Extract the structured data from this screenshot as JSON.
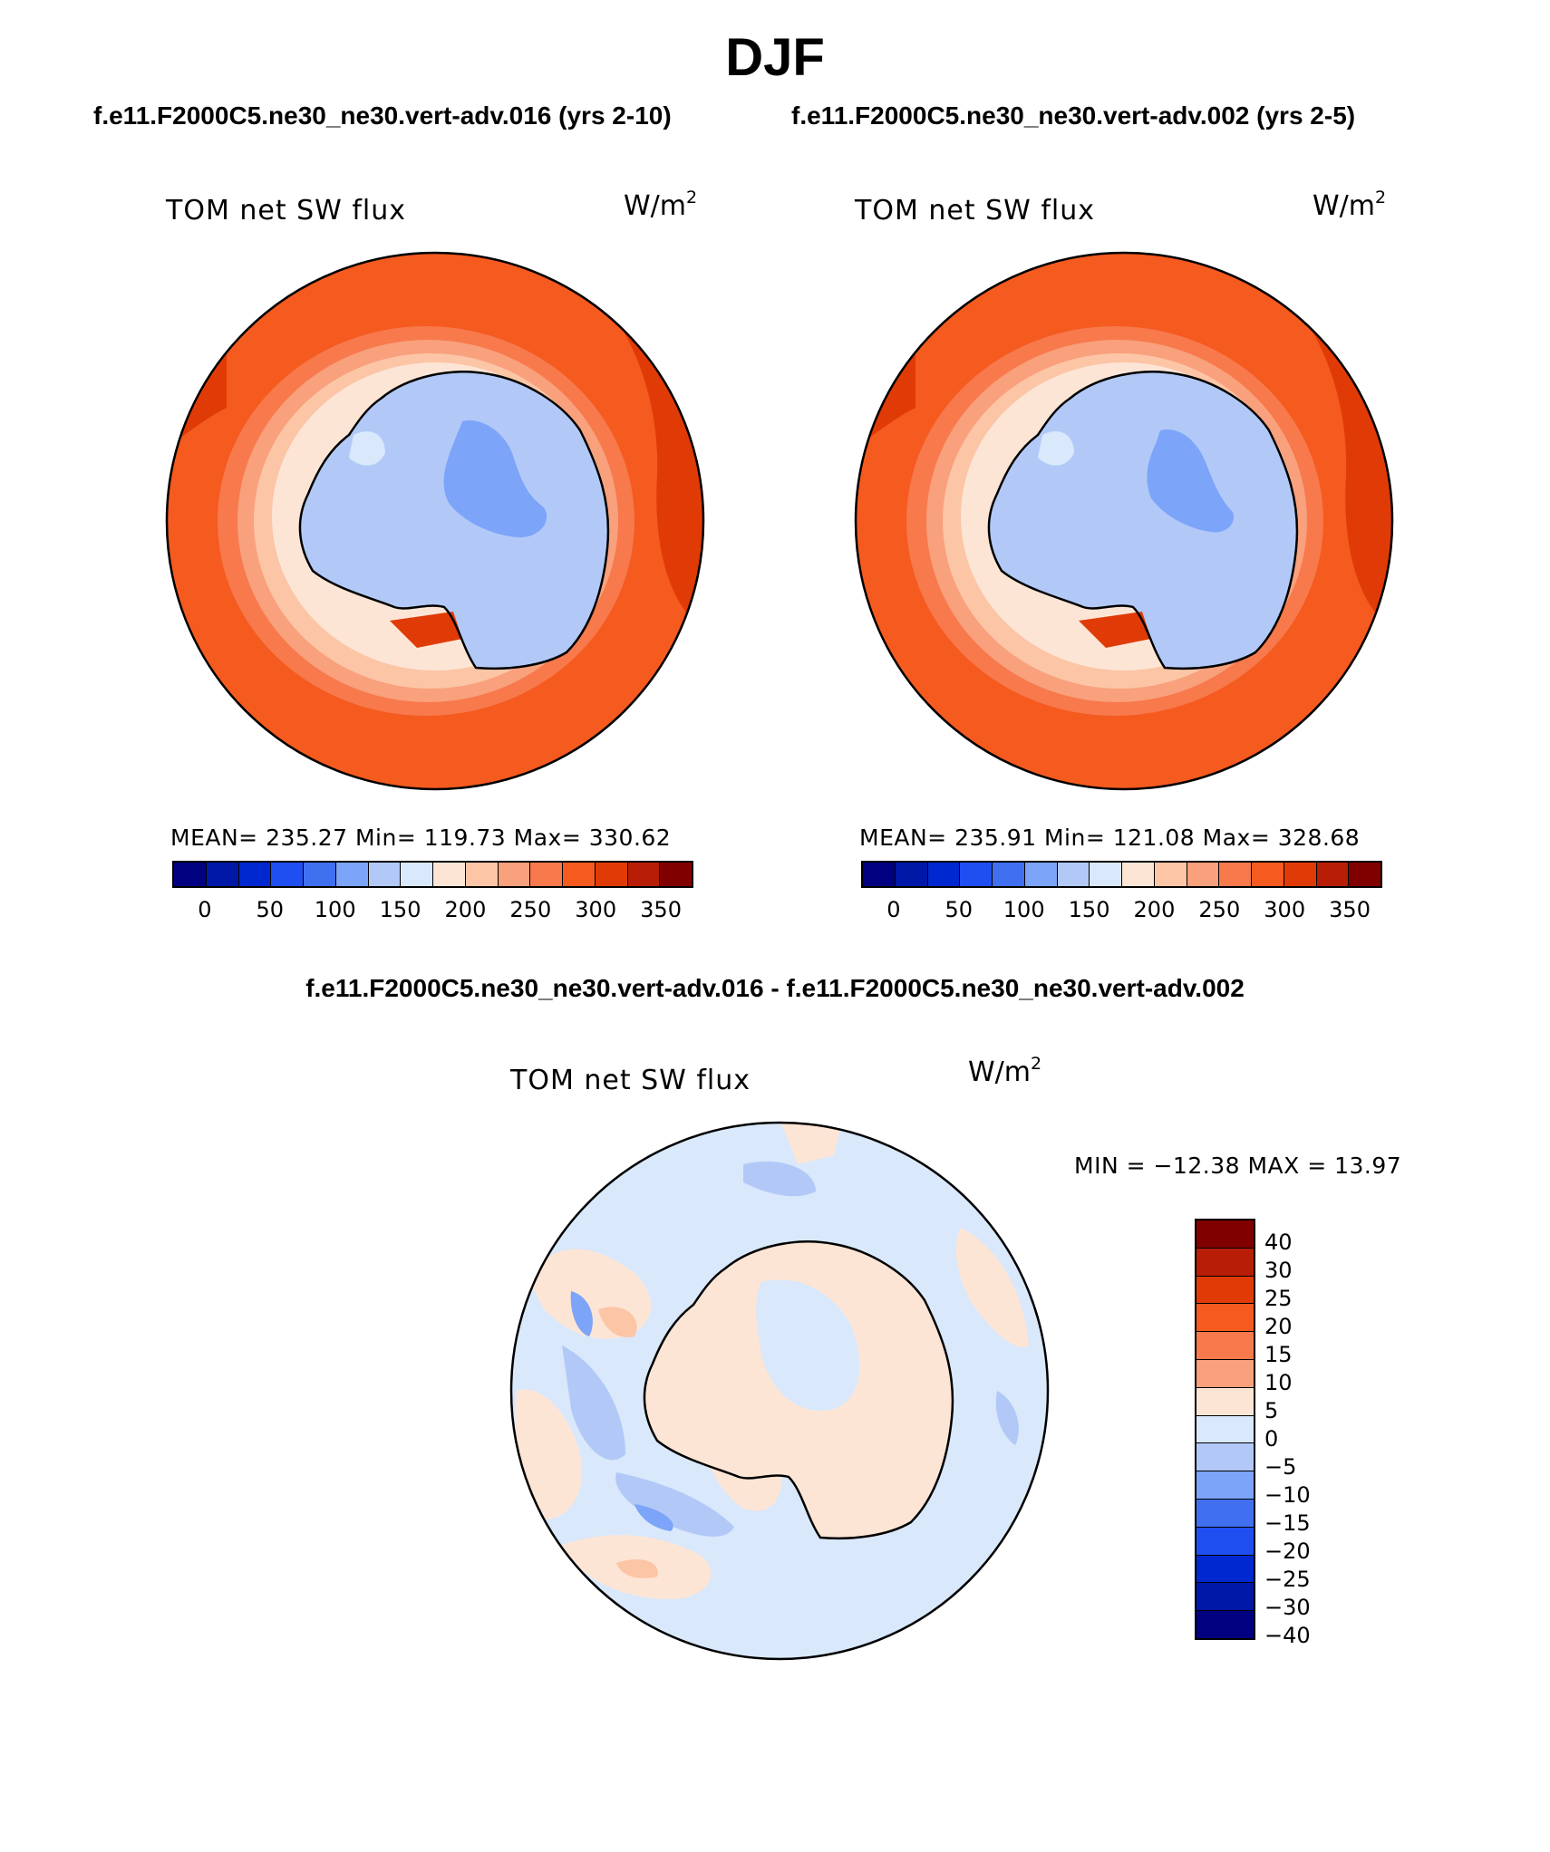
{
  "figure": {
    "season": "DJF",
    "left_case": "f.e11.F2000C5.ne30_ne30.vert-adv.016 (yrs 2-10)",
    "right_case": "f.e11.F2000C5.ne30_ne30.vert-adv.002 (yrs 2-5)",
    "diff_title": "f.e11.F2000C5.ne30_ne30.vert-adv.016 - f.e11.F2000C5.ne30_ne30.vert-adv.002"
  },
  "panels": {
    "left": {
      "variable": "TOM net SW flux",
      "units_base": "W/m",
      "units_exp": "2",
      "stats": "MEAN= 235.27   Min= 119.73   Max= 330.62"
    },
    "right": {
      "variable": "TOM net SW flux",
      "units_base": "W/m",
      "units_exp": "2",
      "stats": "MEAN= 235.91   Min= 121.08   Max= 328.68"
    },
    "diff": {
      "variable": "TOM net SW flux",
      "units_base": "W/m",
      "units_exp": "2",
      "stats": "MIN = −12.38 MAX =   13.97"
    }
  },
  "colorbar_abs": {
    "colors": [
      "#000080",
      "#0018a8",
      "#0028d0",
      "#1f4ff0",
      "#4070f0",
      "#7ca4f8",
      "#b2c9f8",
      "#d9e8fb",
      "#fde5d6",
      "#fcc5a6",
      "#f9a07c",
      "#f7794c",
      "#f55a1f",
      "#e03b07",
      "#b81e05",
      "#800000"
    ],
    "labels": [
      "0",
      "50",
      "100",
      "150",
      "200",
      "250",
      "300",
      "350"
    ]
  },
  "colorbar_diff": {
    "colors": [
      "#800000",
      "#b81e05",
      "#e03b07",
      "#f55a1f",
      "#f7794c",
      "#f9a07c",
      "#fde5d6",
      "#d9e8fb",
      "#b2c9f8",
      "#7ca4f8",
      "#4070f0",
      "#1f4ff0",
      "#0028d0",
      "#0018a8",
      "#000080"
    ],
    "labels": [
      "40",
      "30",
      "25",
      "20",
      "15",
      "10",
      "5",
      "0",
      "−5",
      "−10",
      "−15",
      "−20",
      "−25",
      "−30",
      "−40"
    ]
  },
  "map_colors": {
    "ocean_high": "#f55a1f",
    "ocean_higher": "#e03b07",
    "ocean_mid": "#f7794c",
    "edge_1": "#f9a07c",
    "edge_2": "#fcc5a6",
    "edge_3": "#fde5d6",
    "ice": "#b2c9f8",
    "ice_low": "#7ca4f8",
    "ice_edge": "#d9e8fb",
    "diff_bg": "#d9e8fb",
    "diff_pos": "#fde5d6",
    "diff_pos2": "#fcc5a6",
    "diff_neg": "#b2c9f8",
    "diff_neg2": "#7ca4f8"
  }
}
